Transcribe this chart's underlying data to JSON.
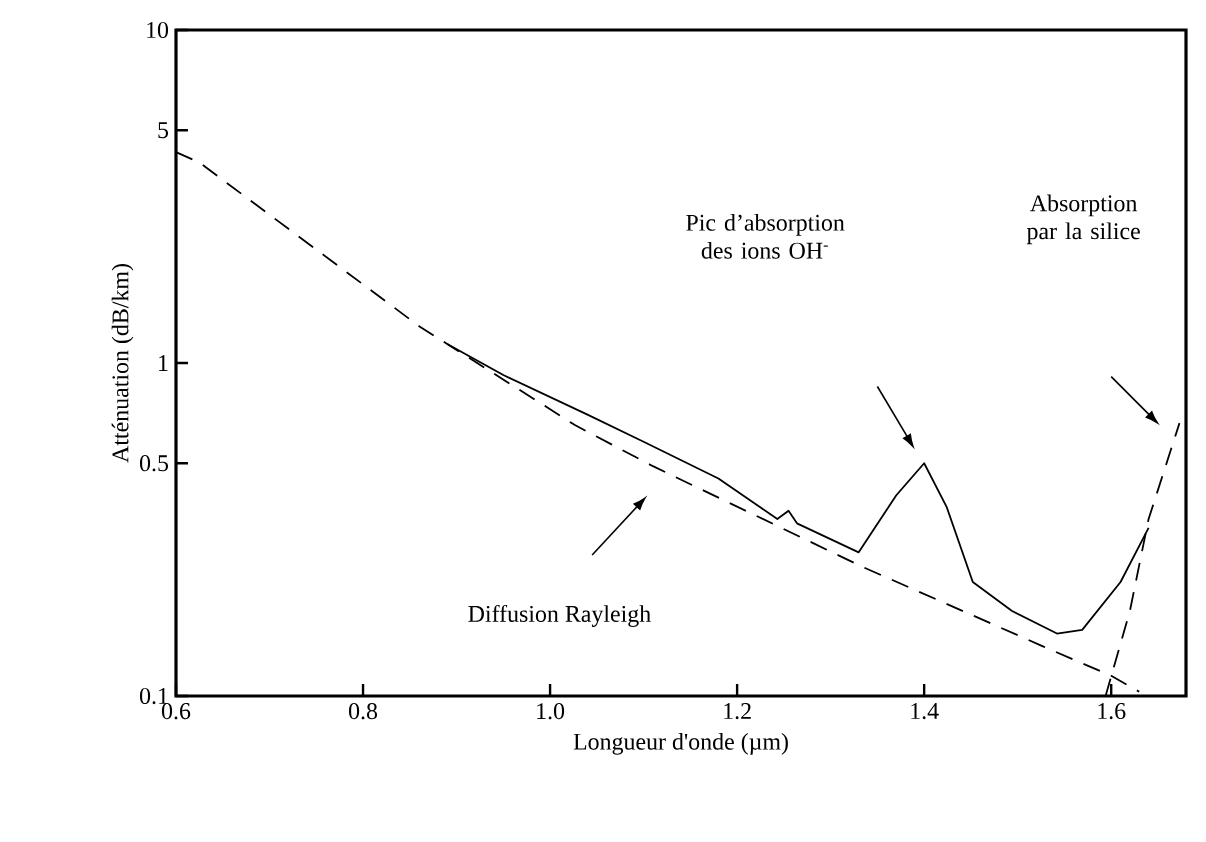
{
  "chart_data": {
    "type": "line",
    "xlabel": "Longueur d'onde (µm)",
    "ylabel": "Atténuation (dB/km)",
    "xlim": [
      0.6,
      1.68
    ],
    "ylim": [
      0.1,
      10
    ],
    "xticks": [
      {
        "value": 0.6,
        "label": "0.6"
      },
      {
        "value": 0.8,
        "label": "0.8"
      },
      {
        "value": 1.0,
        "label": "1.0"
      },
      {
        "value": 1.2,
        "label": "1.2"
      },
      {
        "value": 1.4,
        "label": "1.4"
      },
      {
        "value": 1.6,
        "label": "1.6"
      }
    ],
    "yticks": [
      0.1,
      0.5,
      1,
      5,
      10
    ],
    "log": "y",
    "grid": false,
    "marker": "none",
    "series": [
      {
        "color": "#000000",
        "line_style": "solid",
        "x": [
          0.89,
          0.95,
          1.04,
          1.1,
          1.18,
          1.243,
          1.255,
          1.264,
          1.33,
          1.37,
          1.4,
          1.424,
          1.452,
          1.494,
          1.542,
          1.569,
          1.61,
          1.64
        ],
        "values": [
          1.14,
          0.92,
          0.7,
          0.58,
          0.45,
          0.34,
          0.36,
          0.33,
          0.27,
          0.4,
          0.5,
          0.37,
          0.22,
          0.18,
          0.154,
          0.158,
          0.22,
          0.32
        ]
      },
      {
        "color": "#000000",
        "line_style": "dashed",
        "x": [
          0.6,
          0.625,
          0.86,
          1.027,
          1.11,
          1.333,
          1.527,
          1.6,
          1.63
        ],
        "values": [
          4.3,
          4.0,
          1.29,
          0.65,
          0.49,
          0.245,
          0.141,
          0.115,
          0.103
        ]
      },
      {
        "color": "#000000",
        "line_style": "dashed",
        "x": [
          1.594,
          1.62,
          1.64,
          1.673
        ],
        "values": [
          0.1,
          0.18,
          0.34,
          0.66
        ]
      }
    ],
    "annotations": [
      "Pic d’absorption des ions OH$^{-}$",
      "Absorption par la silice",
      "Diffusion Rayleigh"
    ]
  }
}
